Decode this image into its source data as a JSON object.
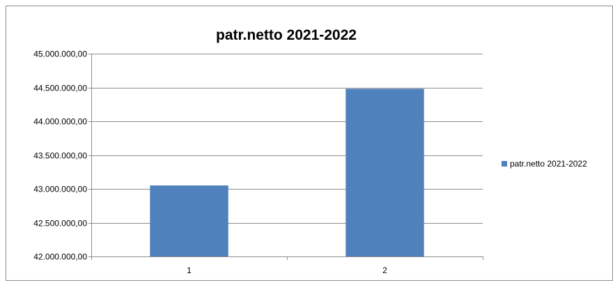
{
  "chart_data": {
    "type": "bar",
    "title": "patr.netto 2021-2022",
    "categories": [
      "1",
      "2"
    ],
    "series": [
      {
        "name": "patr.netto 2021-2022",
        "values": [
          43050000,
          44480000
        ],
        "color": "#4f81bd"
      }
    ],
    "ylim": [
      42000000,
      45000000
    ],
    "y_ticks": [
      "42.000.000,00",
      "42.500.000,00",
      "43.000.000,00",
      "43.500.000,00",
      "44.000.000,00",
      "44.500.000,00",
      "45.000.000,00"
    ],
    "grid": true,
    "legend_position": "right"
  }
}
